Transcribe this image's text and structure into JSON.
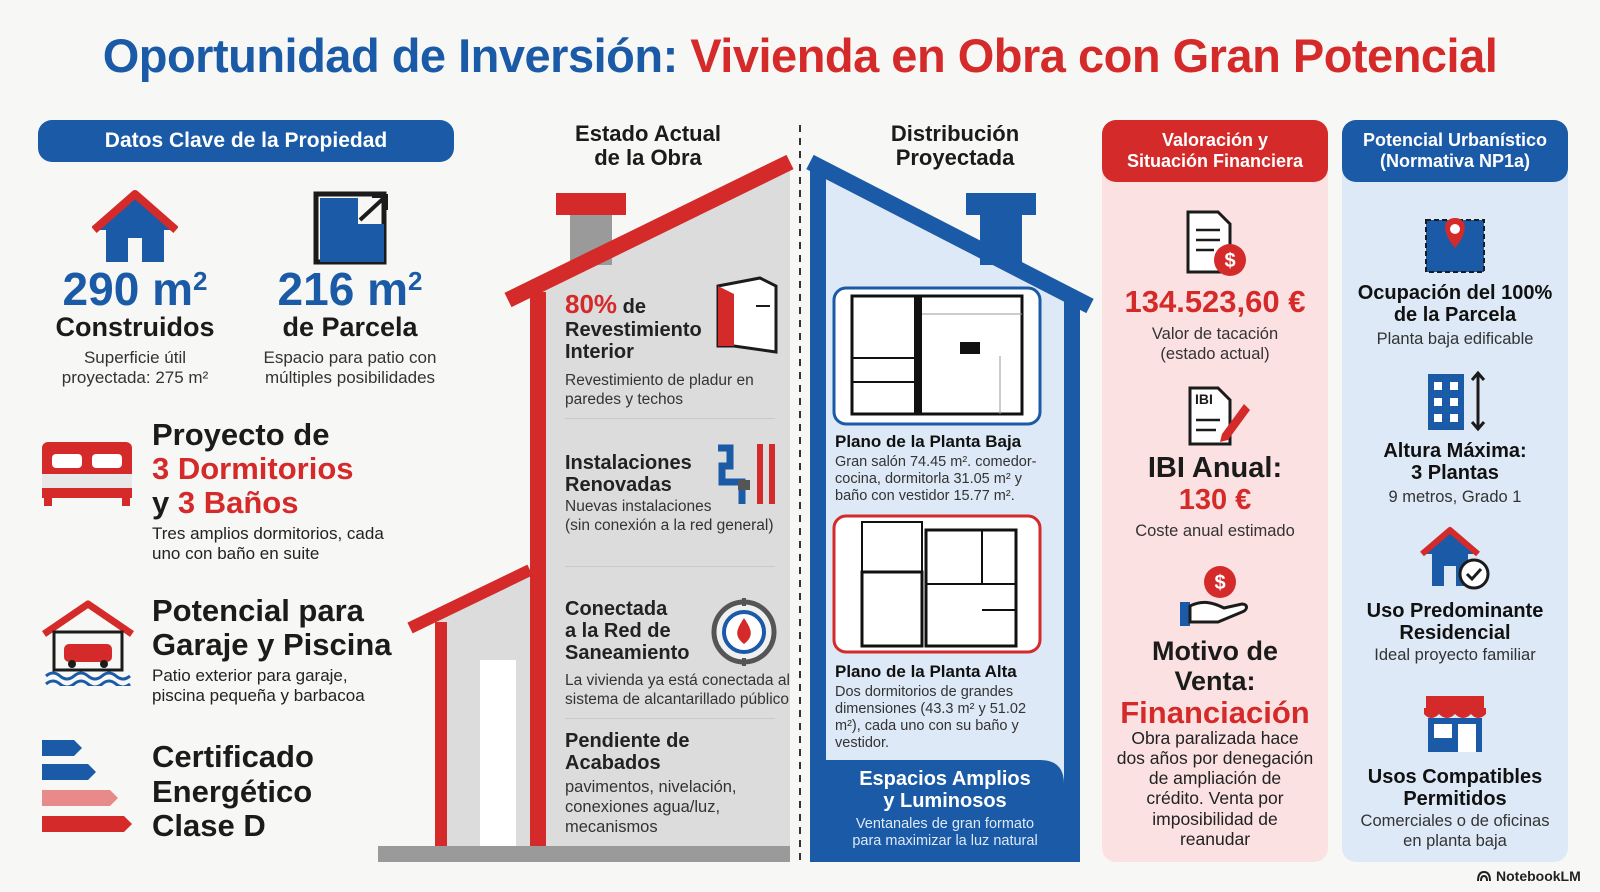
{
  "title": {
    "part1": "Oportunidad de Inversión:",
    "part2": "Vivienda en Obra con Gran Potencial"
  },
  "colors": {
    "blue": "#1a5aa6",
    "red": "#d42a2a"
  },
  "left": {
    "header": "Datos Clave de la Propiedad",
    "built": {
      "value": "290 m",
      "unit": "2",
      "label": "Construidos",
      "desc1": "Superficie útil",
      "desc2": "proyectada: 275 m²"
    },
    "plot": {
      "value": "216 m",
      "unit": "2",
      "label": "de Parcela",
      "desc1": "Espacio para patio con",
      "desc2": "múltiples posibilidades"
    },
    "rooms": {
      "line1": "Proyecto de",
      "line2": "3 Dormitorios",
      "line3a": "y ",
      "line3b": "3 Baños",
      "desc1": "Tres amplios dormitorios, cada",
      "desc2": "uno con baño en suite"
    },
    "garage": {
      "line1": "Potencial para",
      "line2": "Garaje y Piscina",
      "desc1": "Patio exterior para garaje,",
      "desc2": "piscina pequeña y barbacoa"
    },
    "energy": {
      "line1": "Certificado",
      "line2": "Energético",
      "line3": "Clase D"
    }
  },
  "current": {
    "header1": "Estado Actual",
    "header2": "de la Obra",
    "f1": {
      "pct": "80%",
      "t1": " de",
      "t2": "Revestimiento",
      "t3": "Interior",
      "d1": "Revestimiento de pladur en",
      "d2": "paredes y techos"
    },
    "f2": {
      "t1": "Instalaciones",
      "t2": "Renovadas",
      "d1": "Nuevas instalaciones",
      "d2": "(sin conexión a la red general)"
    },
    "f3": {
      "t1": "Conectada",
      "t2": "a la Red de",
      "t3": "Saneamiento",
      "d1": "La vivienda ya está conectada al",
      "d2": "sistema de alcantarillado público"
    },
    "f4": {
      "t1": "Pendiente de",
      "t2": "Acabados",
      "d1": "pavimentos, nivelación,",
      "d2": "conexiones agua/luz,",
      "d3": "mecanismos"
    }
  },
  "projected": {
    "header1": "Distribución",
    "header2": "Proyectada",
    "ground": {
      "title": "Plano de la Planta Baja",
      "d1": "Gran salón 74.45 m². comedor-",
      "d2": "cocina, dormitorla 31.05 m² y",
      "d3": "baño con vestidor 15.77 m²."
    },
    "upper": {
      "title": "Plano de la Planta Alta",
      "d1": "Dos dormitorios de grandes",
      "d2": "dimensiones (43.3 m² y 51.02",
      "d3": "m²), cada uno con su baño y",
      "d4": "vestidor."
    },
    "bottom": {
      "t1": "Espacios Amplios",
      "t2": "y Luminosos",
      "d1": "Ventanales de gran formato",
      "d2": "para maximizar la luz natural"
    }
  },
  "finance": {
    "header1": "Valoración y",
    "header2": "Situación Financiera",
    "price": "134.523,60 €",
    "price_d1": "Valor de tacación",
    "price_d2": "(estado actual)",
    "ibi_badge": "IBI",
    "ibi_label": "IBI Anual:",
    "ibi_value": "130 €",
    "ibi_desc": "Coste anual estimado",
    "motive1": "Motivo de",
    "motive2": "Venta:",
    "motive3": "Financiación",
    "m_d1": "Obra paralizada hace",
    "m_d2": "dos años por denegación",
    "m_d3": "de ampliación de",
    "m_d4": "crédito. Venta por",
    "m_d5": "imposibilidad de",
    "m_d6": "reanudar"
  },
  "urban": {
    "header1": "Potencial Urbanístico",
    "header2": "(Normativa NP1a)",
    "i1": {
      "t1": "Ocupación del 100%",
      "t2": "de la Parcela",
      "d": "Planta baja edificable"
    },
    "i2": {
      "t1": "Altura Máxima:",
      "t2": "3 Plantas",
      "d": "9 metros, Grado 1"
    },
    "i3": {
      "t1": "Uso Predominante",
      "t2": "Residencial",
      "d": "Ideal proyecto familiar"
    },
    "i4": {
      "t1": "Usos Compatibles",
      "t2": "Permitidos",
      "d1": "Comerciales o de oficinas",
      "d2": "en planta baja"
    }
  },
  "footer": {
    "brand": "NotebookLM"
  }
}
